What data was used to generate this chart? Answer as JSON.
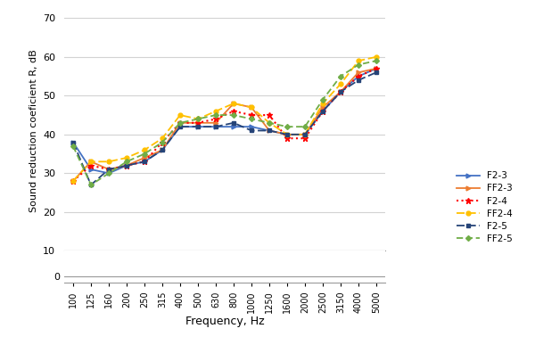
{
  "frequencies": [
    100,
    125,
    160,
    200,
    250,
    315,
    400,
    500,
    630,
    800,
    1000,
    1250,
    1600,
    2000,
    2500,
    3150,
    4000,
    5000
  ],
  "series": {
    "F2-3": {
      "values": [
        38,
        31,
        30,
        32,
        33,
        36,
        42,
        42,
        42,
        42,
        42,
        41,
        40,
        40,
        46,
        51,
        55,
        57
      ],
      "color": "#4472C4",
      "linestyle": "-",
      "marker": ">",
      "markersize": 3.5,
      "linewidth": 1.3
    },
    "FF2-3": {
      "values": [
        28,
        33,
        31,
        32,
        34,
        36,
        43,
        43,
        43,
        48,
        47,
        41,
        40,
        40,
        47,
        51,
        56,
        57
      ],
      "color": "#ED7D31",
      "linestyle": "-",
      "marker": ">",
      "markersize": 3.5,
      "linewidth": 1.3
    },
    "F2-4": {
      "values": [
        28,
        32,
        31,
        32,
        33,
        38,
        43,
        43,
        44,
        46,
        45,
        45,
        39,
        39,
        46,
        51,
        55,
        57
      ],
      "color": "#FF0000",
      "linestyle": ":",
      "marker": "*",
      "markersize": 4.5,
      "linewidth": 1.5
    },
    "FF2-4": {
      "values": [
        28,
        33,
        33,
        34,
        36,
        39,
        45,
        44,
        46,
        48,
        47,
        43,
        40,
        40,
        48,
        53,
        59,
        60
      ],
      "color": "#FFC000",
      "linestyle": "--",
      "marker": "o",
      "markersize": 3.5,
      "linewidth": 1.3,
      "dashes": [
        5,
        2
      ]
    },
    "F2-5": {
      "values": [
        38,
        27,
        31,
        32,
        33,
        36,
        42,
        42,
        42,
        43,
        41,
        41,
        40,
        40,
        46,
        51,
        54,
        56
      ],
      "color": "#264478",
      "linestyle": "--",
      "marker": "s",
      "markersize": 3.5,
      "linewidth": 1.3,
      "dashes": [
        5,
        2
      ]
    },
    "FF2-5": {
      "values": [
        37,
        27,
        30,
        33,
        35,
        38,
        43,
        44,
        45,
        45,
        44,
        43,
        42,
        42,
        49,
        55,
        58,
        59
      ],
      "color": "#70AD47",
      "linestyle": "--",
      "marker": "D",
      "markersize": 3.0,
      "linewidth": 1.3,
      "dashes": [
        4,
        2
      ]
    }
  },
  "xlabel": "Frequency, Hz",
  "ylabel": "Sound reduction coeficient R, dB",
  "yticks_main": [
    10,
    20,
    30,
    40,
    50,
    60,
    70
  ],
  "ytick_zero": 0,
  "ylim_main": [
    10,
    72
  ],
  "ylim_zero": [
    -2,
    10
  ],
  "grid_color": "#D3D3D3",
  "background_color": "#FFFFFF",
  "legend_order": [
    "F2-3",
    "FF2-3",
    "F2-4",
    "FF2-4",
    "F2-5",
    "FF2-5"
  ]
}
